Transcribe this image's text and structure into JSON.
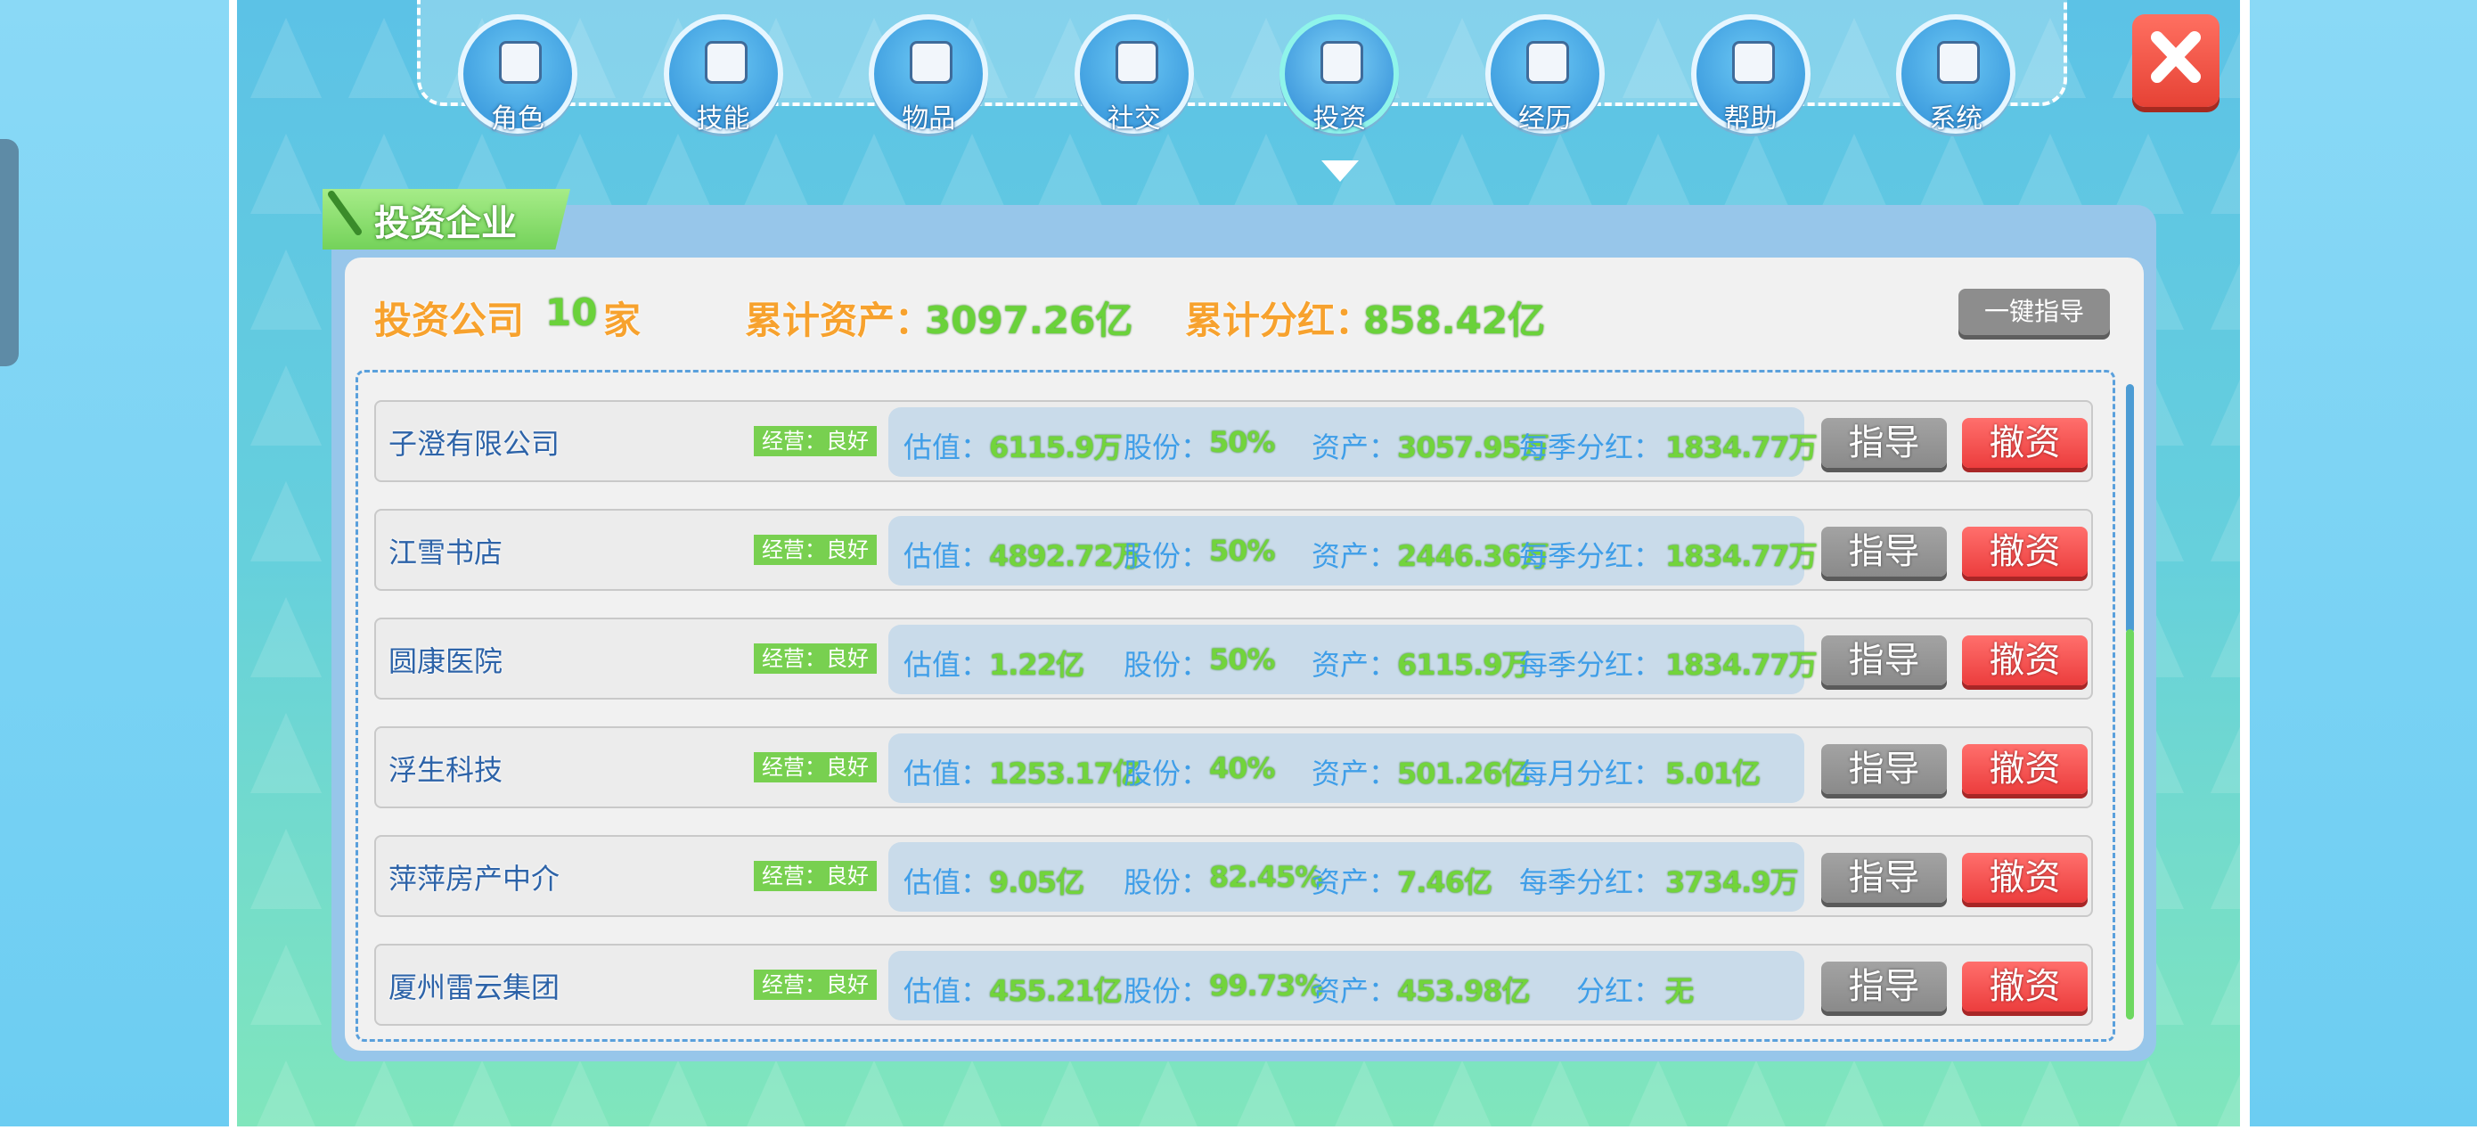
{
  "tabs": [
    "角色",
    "技能",
    "物品",
    "社交",
    "投资",
    "经历",
    "帮助",
    "系统"
  ],
  "panel": {
    "title": "投资企业",
    "summary": {
      "company_count_label": "投资公司",
      "company_count": "10",
      "company_count_unit": "家",
      "assets_label": "累计资产：",
      "assets": "3097.26亿",
      "dividends_label": "累计分红：",
      "dividends": "858.42亿"
    },
    "guide_all_button": "一键指导"
  },
  "companies": [
    {
      "name": "子澄有限公司",
      "status": "经营：良好",
      "valuation_label": "估值：",
      "valuation": "6115.9万",
      "shares_label": "股份：",
      "shares": "50%",
      "assets_label": "资产：",
      "assets": "3057.95万",
      "dividend_label": "每季分红：",
      "dividend": "1834.77万",
      "guide": "指导",
      "divest": "撤资"
    },
    {
      "name": "江雪书店",
      "status": "经营：良好",
      "valuation_label": "估值：",
      "valuation": "4892.72万",
      "shares_label": "股份：",
      "shares": "50%",
      "assets_label": "资产：",
      "assets": "2446.36万",
      "dividend_label": "每季分红：",
      "dividend": "1834.77万",
      "guide": "指导",
      "divest": "撤资"
    },
    {
      "name": "圆康医院",
      "status": "经营：良好",
      "valuation_label": "估值：",
      "valuation": "1.22亿",
      "shares_label": "股份：",
      "shares": "50%",
      "assets_label": "资产：",
      "assets": "6115.9万",
      "dividend_label": "每季分红：",
      "dividend": "1834.77万",
      "guide": "指导",
      "divest": "撤资"
    },
    {
      "name": "浮生科技",
      "status": "经营：良好",
      "valuation_label": "估值：",
      "valuation": "1253.17亿",
      "shares_label": "股份：",
      "shares": "40%",
      "assets_label": "资产：",
      "assets": "501.26亿",
      "dividend_label": "每月分红：",
      "dividend": "5.01亿",
      "guide": "指导",
      "divest": "撤资"
    },
    {
      "name": "萍萍房产中介",
      "status": "经营：良好",
      "valuation_label": "估值：",
      "valuation": "9.05亿",
      "shares_label": "股份：",
      "shares": "82.45%",
      "assets_label": "资产：",
      "assets": "7.46亿",
      "dividend_label": "每季分红：",
      "dividend": "3734.9万",
      "guide": "指导",
      "divest": "撤资"
    },
    {
      "name": "厦州雷云集团",
      "status": "经营：良好",
      "valuation_label": "估值：",
      "valuation": "455.21亿",
      "shares_label": "股份：",
      "shares": "99.73%",
      "assets_label": "资产：",
      "assets": "453.98亿",
      "dividend_label": "分红：",
      "dividend": "无",
      "guide": "指导",
      "divest": "撤资"
    }
  ]
}
